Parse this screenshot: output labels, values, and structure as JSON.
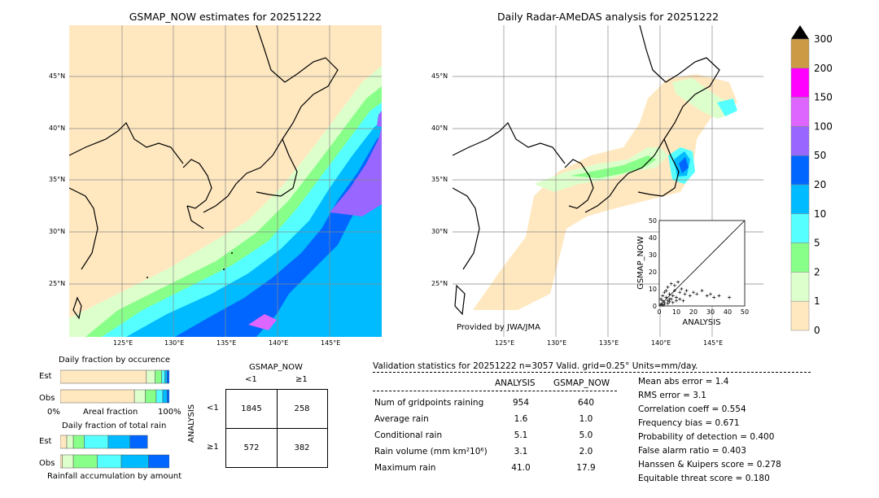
{
  "map_left": {
    "title": "GSMAP_NOW estimates for 20251222",
    "lon_ticks": [
      "125°E",
      "130°E",
      "135°E",
      "140°E",
      "145°E"
    ],
    "lat_ticks": [
      "45°N",
      "40°N",
      "35°N",
      "30°N",
      "25°N"
    ]
  },
  "map_right": {
    "title": "Daily Radar-AMeDAS analysis for 20251222",
    "lon_ticks": [
      "125°E",
      "130°E",
      "135°E",
      "140°E",
      "145°E"
    ],
    "lat_ticks": [
      "45°N",
      "40°N",
      "35°N",
      "30°N",
      "25°N"
    ],
    "credit": "Provided by JWA/JMA"
  },
  "colorbar": {
    "labels": [
      "300",
      "200",
      "150",
      "100",
      "50",
      "20",
      "10",
      "5",
      "2",
      "1",
      "0"
    ],
    "colors": [
      "#000000",
      "#cc9944",
      "#ff00ff",
      "#dd66ff",
      "#9966ff",
      "#0066ff",
      "#00bbff",
      "#55ffff",
      "#88ff88",
      "#ddffcc",
      "#ffe8c0"
    ]
  },
  "occurrence": {
    "title": "Daily fraction by occurence",
    "rows": [
      "Est",
      "Obs"
    ],
    "axis_left": "0%",
    "axis_mid": "Areal fraction",
    "axis_right": "100%"
  },
  "total_rain": {
    "title": "Daily fraction of total rain",
    "rows": [
      "Est",
      "Obs"
    ],
    "footer": "Rainfall accumulation by amount"
  },
  "contingency": {
    "title": "GSMAP_NOW",
    "col_labels": [
      "<1",
      "≥1"
    ],
    "row_axis": "ANALYSIS",
    "row_labels": [
      "<1",
      "≥1"
    ],
    "cells": [
      [
        "1845",
        "258"
      ],
      [
        "572",
        "382"
      ]
    ]
  },
  "validation": {
    "header": "Validation statistics for 20251222  n=3057 Valid. grid=0.25° Units=mm/day.",
    "col_analysis": "ANALYSIS",
    "col_gsmap": "GSMAP_NOW",
    "rows": [
      {
        "label": "Num of gridpoints raining",
        "analysis": "954",
        "gsmap": "640"
      },
      {
        "label": "Average rain",
        "analysis": "1.6",
        "gsmap": "1.0"
      },
      {
        "label": "Conditional rain",
        "analysis": "5.1",
        "gsmap": "5.0"
      },
      {
        "label": "Rain volume (mm km²10⁶)",
        "analysis": "3.1",
        "gsmap": "2.0"
      },
      {
        "label": "Maximum rain",
        "analysis": "41.0",
        "gsmap": "17.9"
      }
    ],
    "scores": [
      "Mean abs error =    1.4",
      "RMS error =    3.1",
      "Correlation coeff =  0.554",
      "Frequency bias =  0.671",
      "Probability of detection =  0.400",
      "False alarm ratio =  0.403",
      "Hanssen & Kuipers score =  0.278",
      "Equitable threat score =  0.180"
    ]
  },
  "chart_data": [
    {
      "type": "scatter",
      "xlabel": "ANALYSIS",
      "ylabel": "GSMAP_NOW",
      "xlim": [
        0,
        50
      ],
      "ylim": [
        0,
        50
      ],
      "ticks": [
        "0",
        "10",
        "20",
        "30",
        "40",
        "50"
      ],
      "points": [
        [
          1,
          1
        ],
        [
          2,
          3
        ],
        [
          3,
          2
        ],
        [
          4,
          5
        ],
        [
          5,
          3
        ],
        [
          6,
          7
        ],
        [
          7,
          4
        ],
        [
          8,
          6
        ],
        [
          9,
          9
        ],
        [
          10,
          5
        ],
        [
          12,
          8
        ],
        [
          13,
          10
        ],
        [
          15,
          7
        ],
        [
          16,
          9
        ],
        [
          18,
          6
        ],
        [
          20,
          8
        ],
        [
          22,
          7
        ],
        [
          25,
          9
        ],
        [
          28,
          6
        ],
        [
          30,
          7
        ],
        [
          32,
          5
        ],
        [
          35,
          6
        ],
        [
          41,
          5
        ],
        [
          3,
          8
        ],
        [
          5,
          11
        ],
        [
          7,
          13
        ],
        [
          9,
          12
        ],
        [
          11,
          14
        ],
        [
          2,
          6
        ],
        [
          4,
          9
        ],
        [
          6,
          4
        ],
        [
          8,
          2
        ],
        [
          10,
          3
        ],
        [
          12,
          4
        ],
        [
          14,
          3
        ],
        [
          1,
          4
        ],
        [
          2,
          0.5
        ],
        [
          3,
          1
        ],
        [
          5,
          1.5
        ],
        [
          6,
          2.5
        ]
      ]
    },
    {
      "type": "bar",
      "title": "Daily fraction by occurence",
      "categories": [
        "Est",
        "Obs"
      ],
      "stacked_fractions": [
        [
          0.79,
          0.08,
          0.06,
          0.03,
          0.02,
          0.02
        ],
        [
          0.68,
          0.1,
          0.1,
          0.06,
          0.04,
          0.02
        ]
      ],
      "colors": [
        "#ffe8c0",
        "#ddffcc",
        "#88ff88",
        "#55ffff",
        "#00bbff",
        "#0066ff"
      ]
    },
    {
      "type": "bar",
      "title": "Daily fraction of total rain",
      "categories": [
        "Est",
        "Obs"
      ],
      "stacked_fractions": [
        [
          0.06,
          0.06,
          0.1,
          0.22,
          0.2,
          0.16
        ],
        [
          0.02,
          0.1,
          0.22,
          0.22,
          0.25,
          0.19
        ]
      ],
      "colors": [
        "#ffe8c0",
        "#ddffcc",
        "#88ff88",
        "#55ffff",
        "#00bbff",
        "#0066ff"
      ]
    }
  ]
}
